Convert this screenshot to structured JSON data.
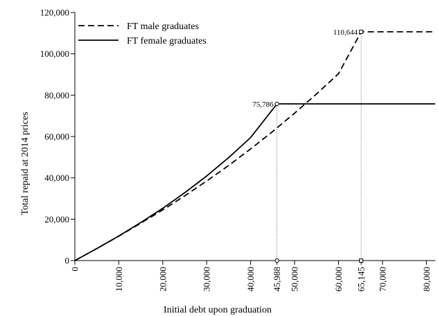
{
  "chart_data": {
    "type": "line",
    "xlabel": "Initial debt upon graduation",
    "ylabel": "Total repaid at 2014 prices",
    "xlim": [
      0,
      82000
    ],
    "ylim": [
      0,
      120000
    ],
    "x_ticks": [
      0,
      10000,
      20000,
      30000,
      40000,
      50000,
      60000,
      70000,
      80000
    ],
    "x_tick_labels": [
      "0",
      "10,000",
      "20,000",
      "30,000",
      "40,000",
      "50,000",
      "60,000",
      "70,000",
      "80,000"
    ],
    "y_ticks": [
      0,
      20000,
      40000,
      60000,
      80000,
      100000,
      120000
    ],
    "y_tick_labels": [
      "0",
      "20,000",
      "40,000",
      "60,000",
      "80,000",
      "100,000",
      "120,000"
    ],
    "legend_position": "top-left",
    "grid": false,
    "series": [
      {
        "name": "FT male graduates",
        "style": "dashed",
        "color": "#000000",
        "x": [
          0,
          5000,
          10000,
          15000,
          20000,
          25000,
          30000,
          35000,
          40000,
          45000,
          50000,
          55000,
          60000,
          65145,
          82000
        ],
        "y": [
          0,
          5800,
          11800,
          18100,
          24500,
          31300,
          38500,
          46000,
          54000,
          62400,
          71300,
          80600,
          90400,
          110644,
          110644
        ]
      },
      {
        "name": "FT female graduates",
        "style": "solid",
        "color": "#000000",
        "x": [
          0,
          5000,
          10000,
          15000,
          20000,
          25000,
          30000,
          35000,
          40000,
          45988,
          82000
        ],
        "y": [
          0,
          5800,
          11900,
          18400,
          25300,
          32800,
          40900,
          49800,
          59500,
          75786,
          75786
        ]
      }
    ],
    "annotations": [
      {
        "x": 45988,
        "y": 75786,
        "x_label": "45,988",
        "y_label": "75,786"
      },
      {
        "x": 65145,
        "y": 110644,
        "x_label": "65,145",
        "y_label": "110,644"
      }
    ]
  }
}
